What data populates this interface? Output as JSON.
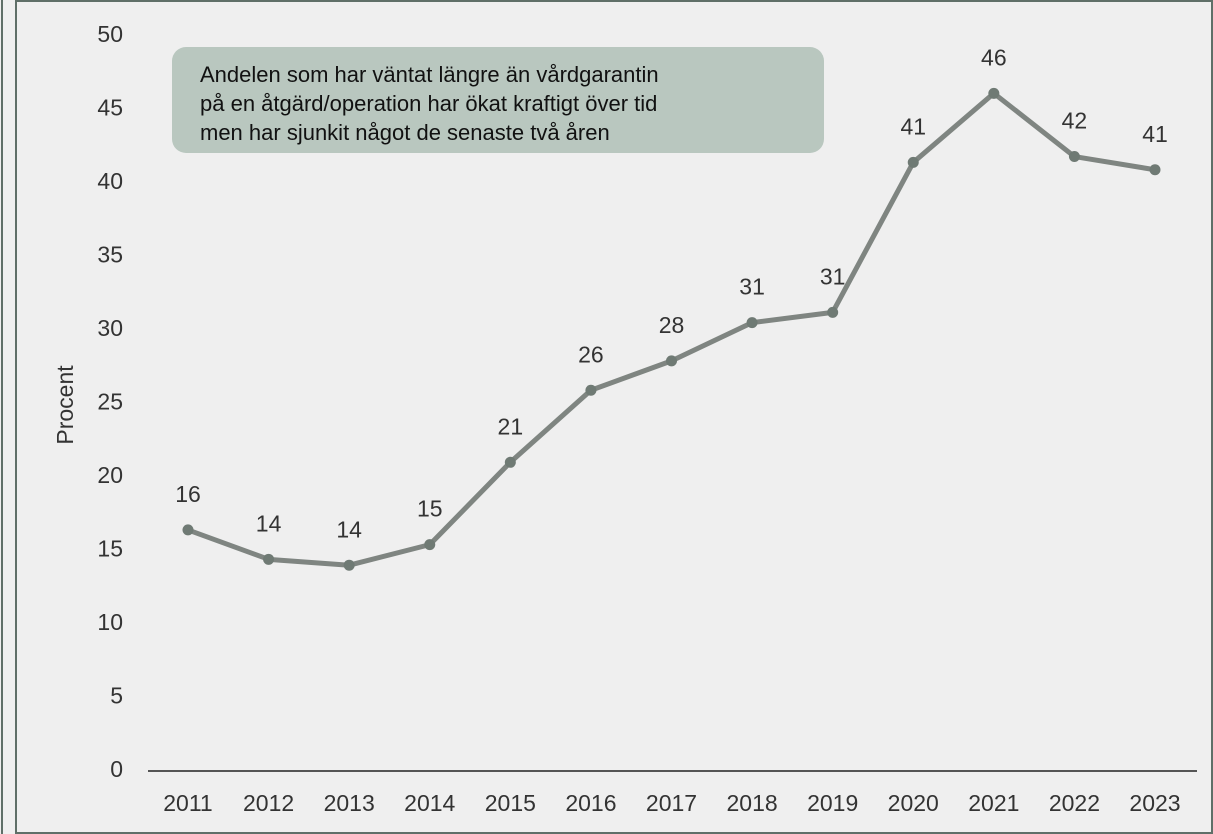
{
  "chart_data": {
    "type": "line",
    "y_label": "Procent",
    "annotation": [
      "Andelen som har väntat längre än vårdgarantin",
      "på en åtgärd/operation har ökat kraftigt över tid",
      "men har sjunkit något de senaste två åren"
    ],
    "categories": [
      "2011",
      "2012",
      "2013",
      "2014",
      "2015",
      "2016",
      "2017",
      "2018",
      "2019",
      "2020",
      "2021",
      "2022",
      "2023"
    ],
    "values": [
      16.4,
      14.4,
      14.0,
      15.4,
      21.0,
      25.9,
      27.9,
      30.5,
      31.2,
      41.4,
      46.1,
      41.8,
      40.9
    ],
    "value_labels": [
      "16",
      "14",
      "14",
      "15",
      "21",
      "26",
      "28",
      "31",
      "31",
      "41",
      "46",
      "42",
      "41"
    ],
    "color": "#7f8581",
    "ylim": [
      0,
      50
    ],
    "yticks": [
      0,
      5,
      10,
      15,
      20,
      25,
      30,
      35,
      40,
      45,
      50
    ],
    "grid": false
  }
}
